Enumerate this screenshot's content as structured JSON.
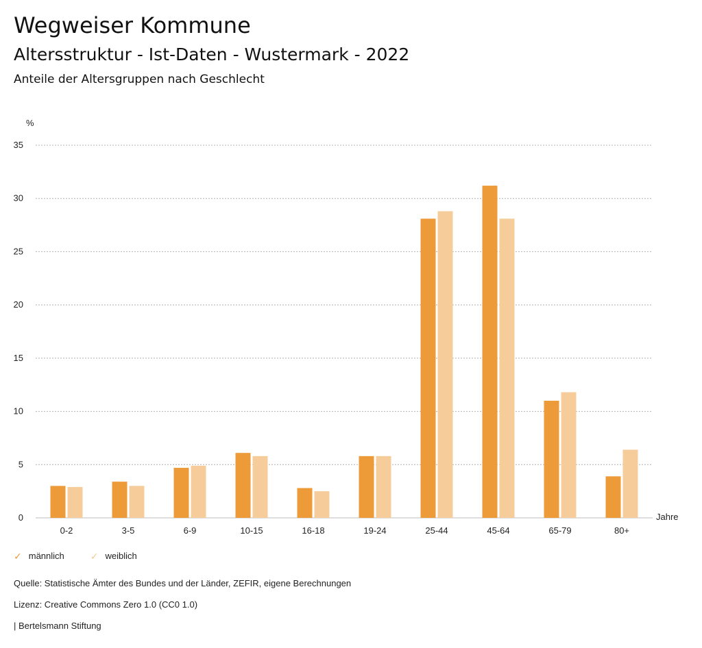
{
  "header": {
    "title": "Wegweiser Kommune",
    "subtitle": "Altersstruktur - Ist-Daten - Wustermark - 2022",
    "subsubtitle": "Anteile der Altersgruppen nach Geschlecht"
  },
  "chart_data": {
    "type": "bar",
    "ylabel": "%",
    "xlabel": "Jahre",
    "ylim": [
      0,
      35
    ],
    "yticks": [
      0,
      5,
      10,
      15,
      20,
      25,
      30,
      35
    ],
    "grid": true,
    "legend_position": "bottom-left",
    "categories": [
      "0-2",
      "3-5",
      "6-9",
      "10-15",
      "16-18",
      "19-24",
      "25-44",
      "45-64",
      "65-79",
      "80+"
    ],
    "series": [
      {
        "name": "männlich",
        "color": "#ed9a38",
        "values": [
          3.0,
          3.4,
          4.7,
          6.1,
          2.8,
          5.8,
          28.1,
          31.2,
          11.0,
          3.9
        ]
      },
      {
        "name": "weiblich",
        "color": "#f5cc9a",
        "values": [
          2.9,
          3.0,
          4.9,
          5.8,
          2.5,
          5.8,
          28.8,
          28.1,
          11.8,
          6.4
        ]
      }
    ]
  },
  "footer": {
    "source": "Quelle: Statistische Ämter des Bundes und der Länder, ZEFIR, eigene Berechnungen",
    "license": "Lizenz: Creative Commons Zero 1.0 (CC0 1.0)",
    "publisher": "| Bertelsmann Stiftung"
  }
}
